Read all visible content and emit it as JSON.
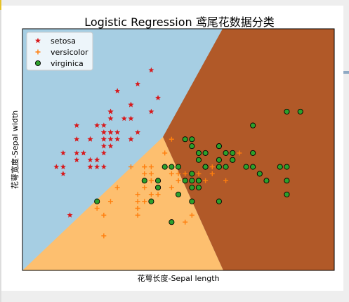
{
  "chart_data": {
    "type": "scatter",
    "title": "Logistic Regression 鸢尾花数据分类",
    "xlabel": "花萼长度-Sepal length",
    "ylabel": "花萼宽度-Sepal width",
    "xlim": [
      3.8,
      8.4
    ],
    "ylim": [
      1.5,
      5.0
    ],
    "grid": false,
    "legend": "top-left",
    "decision_regions": [
      {
        "class": "setosa",
        "color": "#a6cee3"
      },
      {
        "class": "versicolor",
        "color": "#fdbf6f"
      },
      {
        "class": "virginica",
        "color": "#b15928"
      }
    ],
    "series": [
      {
        "name": "setosa",
        "marker": "star",
        "color": "#d7191c",
        "points": [
          [
            5.1,
            3.5
          ],
          [
            4.9,
            3.0
          ],
          [
            4.7,
            3.2
          ],
          [
            4.6,
            3.1
          ],
          [
            5.0,
            3.6
          ],
          [
            5.4,
            3.9
          ],
          [
            4.6,
            3.4
          ],
          [
            5.0,
            3.4
          ],
          [
            4.4,
            2.9
          ],
          [
            4.9,
            3.1
          ],
          [
            5.4,
            3.7
          ],
          [
            4.8,
            3.4
          ],
          [
            4.8,
            3.0
          ],
          [
            4.3,
            3.0
          ],
          [
            5.8,
            4.0
          ],
          [
            5.7,
            4.4
          ],
          [
            5.4,
            3.9
          ],
          [
            5.1,
            3.5
          ],
          [
            5.7,
            3.8
          ],
          [
            5.1,
            3.8
          ],
          [
            5.4,
            3.4
          ],
          [
            5.1,
            3.7
          ],
          [
            4.6,
            3.6
          ],
          [
            5.1,
            3.3
          ],
          [
            4.8,
            3.4
          ],
          [
            5.0,
            3.0
          ],
          [
            5.0,
            3.4
          ],
          [
            5.2,
            3.5
          ],
          [
            5.2,
            3.4
          ],
          [
            4.7,
            3.2
          ],
          [
            4.8,
            3.1
          ],
          [
            5.4,
            3.4
          ],
          [
            5.2,
            4.1
          ],
          [
            5.5,
            4.2
          ],
          [
            4.9,
            3.1
          ],
          [
            5.0,
            3.2
          ],
          [
            5.5,
            3.5
          ],
          [
            4.9,
            3.6
          ],
          [
            4.4,
            3.0
          ],
          [
            5.1,
            3.4
          ],
          [
            5.0,
            3.5
          ],
          [
            4.5,
            2.3
          ],
          [
            4.4,
            3.2
          ],
          [
            5.0,
            3.5
          ],
          [
            5.1,
            3.8
          ],
          [
            4.8,
            3.0
          ],
          [
            5.1,
            3.8
          ],
          [
            4.6,
            3.2
          ],
          [
            5.3,
            3.7
          ],
          [
            5.0,
            3.3
          ]
        ]
      },
      {
        "name": "versicolor",
        "marker": "plus",
        "color": "#ff7f0e",
        "points": [
          [
            7.0,
            3.2
          ],
          [
            6.4,
            3.2
          ],
          [
            6.9,
            3.1
          ],
          [
            5.5,
            2.3
          ],
          [
            6.5,
            2.8
          ],
          [
            5.7,
            2.8
          ],
          [
            6.3,
            3.3
          ],
          [
            4.9,
            2.4
          ],
          [
            6.6,
            2.9
          ],
          [
            5.2,
            2.7
          ],
          [
            5.0,
            2.0
          ],
          [
            5.9,
            3.0
          ],
          [
            6.0,
            2.2
          ],
          [
            6.1,
            2.9
          ],
          [
            5.6,
            2.9
          ],
          [
            6.7,
            3.1
          ],
          [
            5.6,
            3.0
          ],
          [
            5.8,
            2.7
          ],
          [
            6.2,
            2.2
          ],
          [
            5.6,
            2.5
          ],
          [
            5.9,
            3.2
          ],
          [
            6.1,
            2.8
          ],
          [
            6.3,
            2.5
          ],
          [
            6.1,
            2.8
          ],
          [
            6.4,
            2.9
          ],
          [
            6.6,
            3.0
          ],
          [
            6.8,
            2.8
          ],
          [
            6.7,
            3.0
          ],
          [
            6.0,
            2.9
          ],
          [
            5.7,
            2.6
          ],
          [
            5.5,
            2.4
          ],
          [
            5.5,
            2.4
          ],
          [
            5.8,
            2.7
          ],
          [
            6.0,
            2.7
          ],
          [
            5.4,
            3.0
          ],
          [
            6.0,
            3.4
          ],
          [
            6.7,
            3.1
          ],
          [
            6.3,
            2.3
          ],
          [
            5.6,
            3.0
          ],
          [
            5.5,
            2.5
          ],
          [
            5.5,
            2.6
          ],
          [
            6.1,
            3.0
          ],
          [
            5.8,
            2.6
          ],
          [
            5.0,
            2.3
          ],
          [
            5.6,
            2.7
          ],
          [
            5.7,
            3.0
          ],
          [
            5.7,
            2.9
          ],
          [
            6.2,
            2.9
          ],
          [
            5.1,
            2.5
          ],
          [
            5.7,
            2.8
          ]
        ]
      },
      {
        "name": "virginica",
        "marker": "circle",
        "color": "#2ca02c",
        "points": [
          [
            6.3,
            3.3
          ],
          [
            5.8,
            2.7
          ],
          [
            7.1,
            3.0
          ],
          [
            6.3,
            2.9
          ],
          [
            6.5,
            3.0
          ],
          [
            7.6,
            3.0
          ],
          [
            4.9,
            2.5
          ],
          [
            7.3,
            2.9
          ],
          [
            6.7,
            2.5
          ],
          [
            7.2,
            3.6
          ],
          [
            6.5,
            3.2
          ],
          [
            6.4,
            2.7
          ],
          [
            6.8,
            3.0
          ],
          [
            5.7,
            2.5
          ],
          [
            5.8,
            2.8
          ],
          [
            6.4,
            3.2
          ],
          [
            6.5,
            3.0
          ],
          [
            7.7,
            3.8
          ],
          [
            7.7,
            2.6
          ],
          [
            6.0,
            2.2
          ],
          [
            6.9,
            3.2
          ],
          [
            5.6,
            2.8
          ],
          [
            7.7,
            2.8
          ],
          [
            6.3,
            2.7
          ],
          [
            6.7,
            3.3
          ],
          [
            7.2,
            3.2
          ],
          [
            6.2,
            2.8
          ],
          [
            6.1,
            3.0
          ],
          [
            6.4,
            2.8
          ],
          [
            7.2,
            3.0
          ],
          [
            7.4,
            2.8
          ],
          [
            7.9,
            3.8
          ],
          [
            6.4,
            2.8
          ],
          [
            6.3,
            2.8
          ],
          [
            6.1,
            2.6
          ],
          [
            7.7,
            3.0
          ],
          [
            6.3,
            3.4
          ],
          [
            6.4,
            3.1
          ],
          [
            6.0,
            3.0
          ],
          [
            6.9,
            3.1
          ],
          [
            6.7,
            3.1
          ],
          [
            6.9,
            3.1
          ],
          [
            5.8,
            2.7
          ],
          [
            6.8,
            3.2
          ],
          [
            6.7,
            3.3
          ],
          [
            6.7,
            3.0
          ],
          [
            6.3,
            2.5
          ],
          [
            6.5,
            3.0
          ],
          [
            6.2,
            3.4
          ],
          [
            5.9,
            3.0
          ]
        ]
      }
    ]
  }
}
